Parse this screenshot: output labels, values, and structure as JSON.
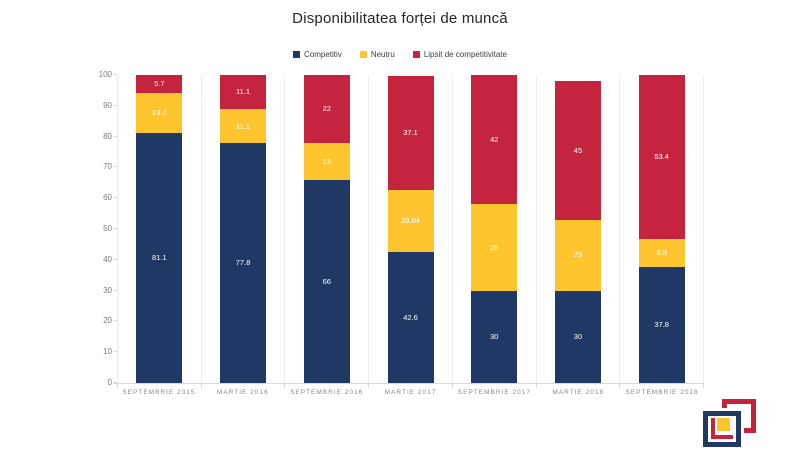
{
  "title": "Disponibilitatea forței de muncă",
  "legend": {
    "items": [
      {
        "label": "Competitiv",
        "color": "#1F3864"
      },
      {
        "label": "Neutru",
        "color": "#FFC52F"
      },
      {
        "label": "Lipsit de competitivitate",
        "color": "#C5243E"
      }
    ]
  },
  "chart_data": {
    "type": "bar",
    "stacked": true,
    "title": "Disponibilitatea forței de muncă",
    "categories": [
      "SEPTEMBRIE 2015",
      "MARTIE 2016",
      "SEPTEMBRIE 2016",
      "MARTIE 2017",
      "SEPTEMBRIE 2017",
      "MARTIE 2018",
      "SEPTEMBRIE 2018"
    ],
    "series": [
      {
        "name": "Competitiv",
        "color": "#1F3864",
        "values": [
          81.1,
          77.8,
          66,
          42.6,
          30,
          30,
          37.8
        ],
        "data_labels": [
          "81.1",
          "77.8",
          "66",
          "42.6",
          "30",
          "30",
          "37.8"
        ]
      },
      {
        "name": "Neutru",
        "color": "#FFC52F",
        "values": [
          13.2,
          11.1,
          12,
          20.04,
          28,
          23,
          8.9
        ],
        "data_labels": [
          "13.2",
          "11.1",
          "12",
          "20.04",
          "28",
          "23",
          "8.9"
        ]
      },
      {
        "name": "Lipsit de competitivitate",
        "color": "#C5243E",
        "values": [
          5.7,
          11.1,
          22,
          37.1,
          42,
          45,
          53.4
        ],
        "data_labels": [
          "5.7",
          "11.1",
          "22",
          "37.1",
          "42",
          "45",
          "53.4"
        ]
      }
    ],
    "ylim": [
      0,
      100
    ],
    "yticks": [
      0,
      10,
      20,
      30,
      40,
      50,
      60,
      70,
      80,
      90,
      100
    ],
    "grid": "vertical category separators only, no horizontal gridlines",
    "legend_position": "top",
    "data_label_color": "#FFFFFF"
  },
  "logo": {
    "name": "nested-squares-logo",
    "colors": {
      "navy": "#1F3864",
      "yellow": "#FFC52F",
      "red": "#C5243E"
    }
  }
}
